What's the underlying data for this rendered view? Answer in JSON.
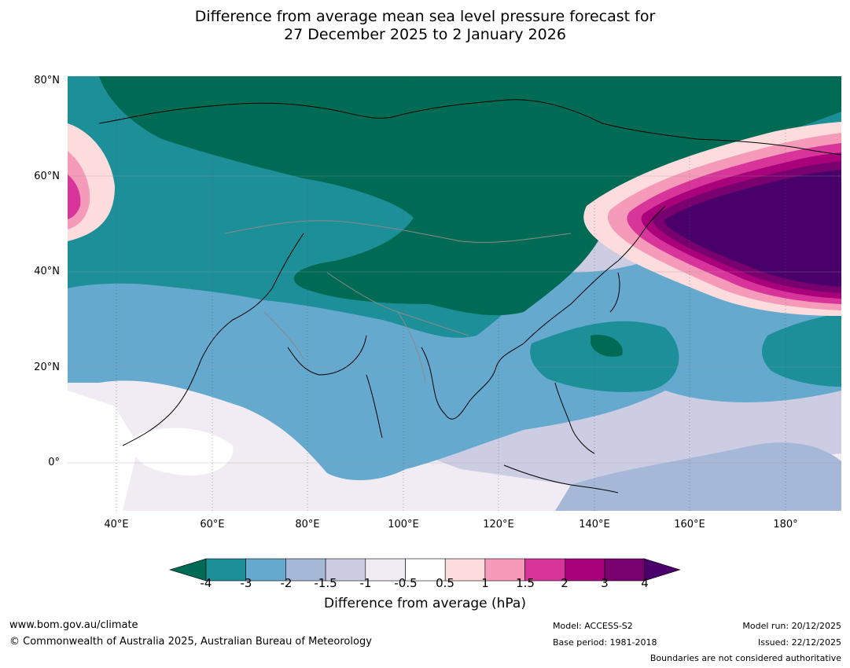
{
  "title_line1": "Difference from average mean sea level pressure forecast for",
  "title_line2": "27 December 2025 to 2 January 2026",
  "lat_labels": [
    "80°N",
    "60°N",
    "40°N",
    "20°N",
    "0°"
  ],
  "lon_labels": [
    "40°E",
    "60°E",
    "80°E",
    "100°E",
    "120°E",
    "140°E",
    "160°E",
    "180°"
  ],
  "colorbar": {
    "title": "Difference from average (hPa)",
    "tick_labels": [
      "-4",
      "-3",
      "-2",
      "-1.5",
      "-1",
      "-0.5",
      "0.5",
      "1",
      "1.5",
      "2",
      "3",
      "4"
    ],
    "colors": [
      "#006b55",
      "#1c8f98",
      "#65a9cf",
      "#a5b8d8",
      "#cccde3",
      "#f1ecf4",
      "#ffffff",
      "#fddcdd",
      "#f59bb9",
      "#d8359a",
      "#a9007b",
      "#79006f",
      "#49006a"
    ]
  },
  "footer": {
    "website": "www.bom.gov.au/climate",
    "copyright": "© Commonwealth of Australia 2025, Australian Bureau of Meteorology",
    "model": "Model: ACCESS-S2",
    "base_period": "Base period: 1981-2018",
    "model_run": "Model run: 20/12/2025",
    "issued": "Issued: 22/12/2025",
    "boundaries_note": "Boundaries are not considered authoritative"
  }
}
